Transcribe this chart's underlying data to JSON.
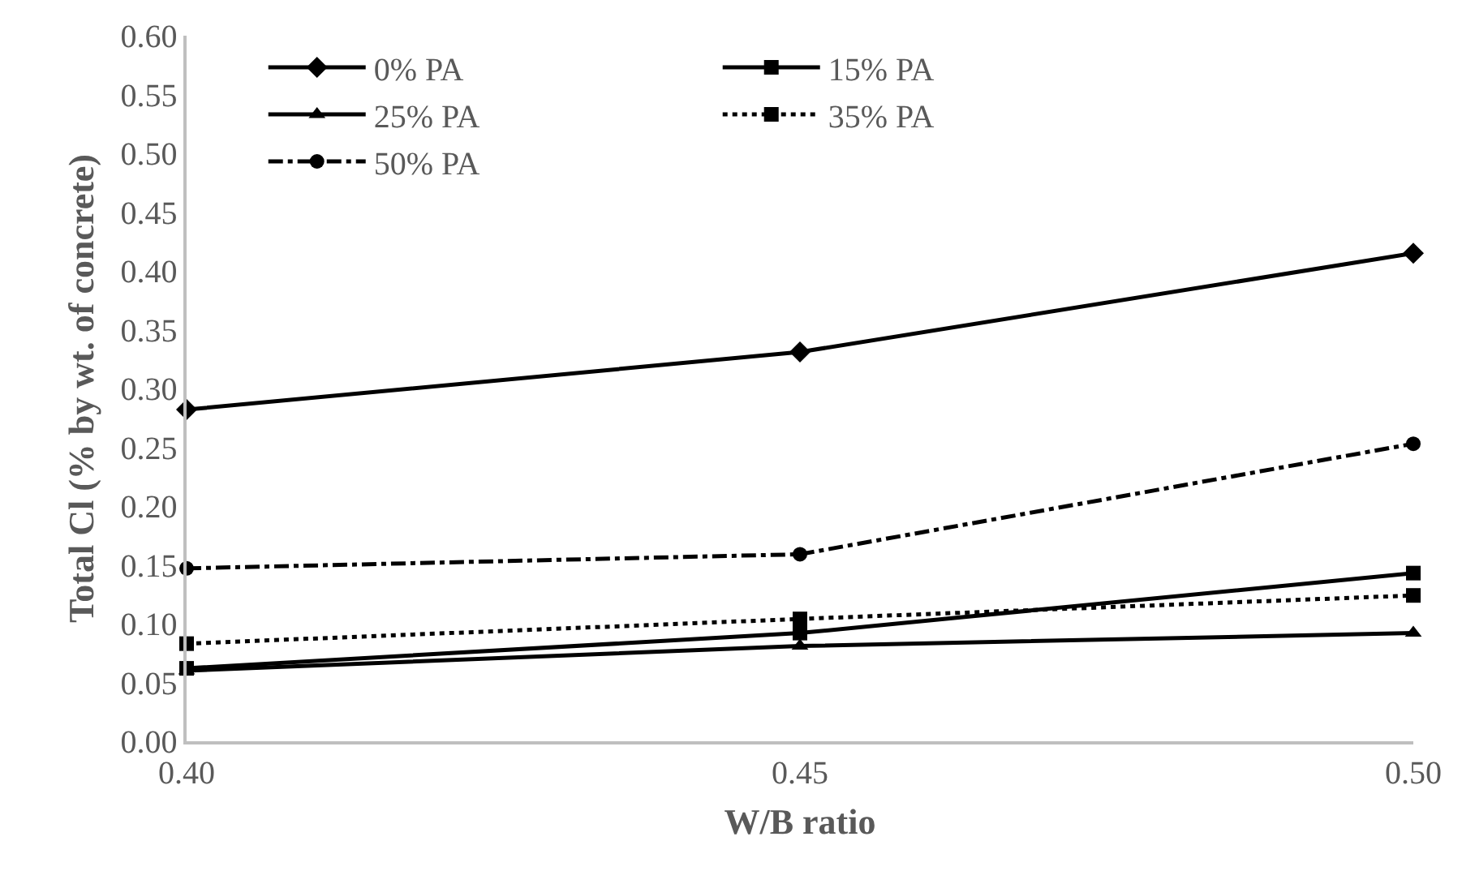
{
  "chart_data": {
    "type": "line",
    "xlabel": "W/B ratio",
    "ylabel": "Total Cl (% by wt. of concrete)",
    "x": [
      0.4,
      0.45,
      0.5
    ],
    "xlim": [
      0.4,
      0.5
    ],
    "xticks": [
      {
        "value": 0.4,
        "label": "0.40"
      },
      {
        "value": 0.45,
        "label": "0.45"
      },
      {
        "value": 0.5,
        "label": "0.50"
      }
    ],
    "ylim": [
      0,
      0.6
    ],
    "yticks": [
      {
        "value": 0,
        "label": "0.00"
      },
      {
        "value": 0.05,
        "label": "0.05"
      },
      {
        "value": 0.1,
        "label": "0.10"
      },
      {
        "value": 0.15,
        "label": "0.15"
      },
      {
        "value": 0.2,
        "label": "0.20"
      },
      {
        "value": 0.25,
        "label": "0.25"
      },
      {
        "value": 0.3,
        "label": "0.30"
      },
      {
        "value": 0.35,
        "label": "0.35"
      },
      {
        "value": 0.4,
        "label": "0.40"
      },
      {
        "value": 0.45,
        "label": "0.45"
      },
      {
        "value": 0.5,
        "label": "0.50"
      },
      {
        "value": 0.55,
        "label": "0.55"
      },
      {
        "value": 0.6,
        "label": "0.60"
      }
    ],
    "grid": false,
    "legend": "top",
    "series": [
      {
        "name": "0% PA",
        "color": "#000000",
        "marker": "diamond",
        "line_style": "solid",
        "values": [
          0.282,
          0.331,
          0.415
        ]
      },
      {
        "name": "15% PA",
        "color": "#000000",
        "marker": "square",
        "line_style": "solid",
        "values": [
          0.062,
          0.092,
          0.143
        ]
      },
      {
        "name": "25% PA",
        "color": "#000000",
        "marker": "triangle",
        "line_style": "solid",
        "values": [
          0.06,
          0.081,
          0.092
        ]
      },
      {
        "name": "35% PA",
        "color": "#000000",
        "marker": "square",
        "line_style": "dotted",
        "values": [
          0.083,
          0.104,
          0.124
        ]
      },
      {
        "name": "50% PA",
        "color": "#000000",
        "marker": "circle",
        "line_style": "dashed",
        "values": [
          0.147,
          0.159,
          0.253
        ]
      }
    ]
  }
}
